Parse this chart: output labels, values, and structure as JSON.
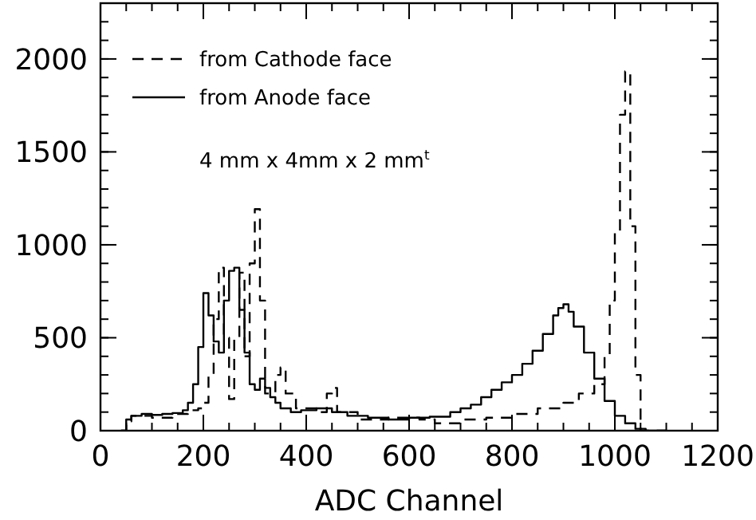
{
  "chart_data": {
    "type": "step",
    "xlabel": "ADC Channel",
    "xlim": [
      0,
      1200
    ],
    "xticks": [
      0,
      200,
      400,
      600,
      800,
      1000,
      1200
    ],
    "ylim": [
      0,
      2300
    ],
    "yticks": [
      0,
      500,
      1000,
      1500,
      2000
    ],
    "legend": "top left",
    "grid": false,
    "annotations": [
      "4 mm x 4mm x 2 mm$^{t}$"
    ],
    "series": [
      {
        "name": "from Cathode face",
        "color": "#000000",
        "line_style": "dashed",
        "x": [
          40,
          50,
          60,
          100,
          140,
          170,
          190,
          200,
          210,
          220,
          230,
          240,
          250,
          260,
          270,
          280,
          290,
          300,
          310,
          320,
          340,
          350,
          360,
          380,
          420,
          440,
          450,
          460,
          500,
          560,
          620,
          650,
          700,
          750,
          800,
          850,
          900,
          930,
          960,
          980,
          990,
          1000,
          1010,
          1020,
          1030,
          1040,
          1050,
          1100
        ],
        "values": [
          0,
          50,
          80,
          70,
          90,
          110,
          120,
          150,
          300,
          600,
          877,
          500,
          170,
          500,
          850,
          400,
          900,
          1192,
          700,
          200,
          300,
          340,
          200,
          120,
          100,
          200,
          230,
          100,
          60,
          70,
          60,
          40,
          60,
          70,
          90,
          120,
          150,
          200,
          250,
          400,
          700,
          1065,
          1700,
          1933,
          1100,
          300,
          0,
          0
        ]
      },
      {
        "name": "from Anode face",
        "color": "#000000",
        "line_style": "solid",
        "x": [
          40,
          50,
          60,
          80,
          100,
          120,
          140,
          160,
          170,
          180,
          190,
          200,
          210,
          220,
          230,
          240,
          250,
          260,
          270,
          280,
          290,
          300,
          310,
          320,
          330,
          340,
          350,
          370,
          390,
          420,
          450,
          480,
          520,
          560,
          600,
          640,
          680,
          700,
          720,
          740,
          760,
          780,
          800,
          820,
          840,
          860,
          880,
          890,
          900,
          910,
          920,
          940,
          960,
          980,
          1000,
          1020,
          1040,
          1060,
          1100
        ],
        "values": [
          0,
          60,
          80,
          90,
          85,
          90,
          95,
          110,
          150,
          250,
          450,
          740,
          620,
          480,
          420,
          700,
          860,
          877,
          650,
          420,
          250,
          220,
          280,
          230,
          180,
          150,
          120,
          100,
          110,
          120,
          100,
          80,
          70,
          60,
          70,
          75,
          100,
          120,
          140,
          180,
          220,
          260,
          300,
          360,
          430,
          520,
          620,
          660,
          680,
          640,
          560,
          420,
          280,
          160,
          80,
          40,
          10,
          0,
          0
        ]
      }
    ]
  }
}
